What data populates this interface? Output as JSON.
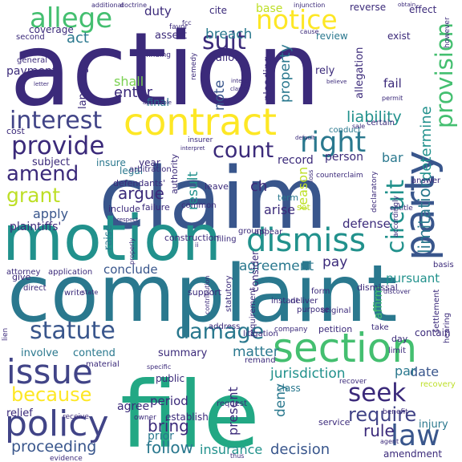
{
  "palette": {
    "dark_purple": "#440154",
    "indigo": "#3b2a7a",
    "blue_purple": "#414487",
    "slate_blue": "#39568c",
    "steel_blue": "#2a788e",
    "teal": "#21918c",
    "green_teal": "#22a884",
    "green": "#44bf70",
    "light_green": "#7ad151",
    "yellow_green": "#bddf26",
    "yellow": "#fde725"
  },
  "words": [
    {
      "text": "action",
      "color": "#3b2a7a"
    },
    {
      "text": "claim",
      "color": "#39568c"
    },
    {
      "text": "complaint",
      "color": "#2a788e"
    },
    {
      "text": "motion",
      "color": "#21918c"
    },
    {
      "text": "file",
      "color": "#22a884"
    },
    {
      "text": "contract",
      "color": "#fde725"
    },
    {
      "text": "party",
      "color": "#39568c"
    },
    {
      "text": "dismiss",
      "color": "#21918c"
    },
    {
      "text": "section",
      "color": "#44bf70"
    },
    {
      "text": "notice",
      "color": "#fde725"
    },
    {
      "text": "allege",
      "color": "#44bf70"
    },
    {
      "text": "issue",
      "color": "#414487"
    },
    {
      "text": "policy",
      "color": "#414487"
    },
    {
      "text": "law",
      "color": "#39568c"
    },
    {
      "text": "right",
      "color": "#2a788e"
    },
    {
      "text": "provide",
      "color": "#3b2a7a"
    },
    {
      "text": "interest",
      "color": "#414487"
    },
    {
      "text": "count",
      "color": "#3b2a7a"
    },
    {
      "text": "amend",
      "color": "#3b2a7a"
    },
    {
      "text": "grant",
      "color": "#bddf26"
    },
    {
      "text": "circuit",
      "color": "#21918c"
    },
    {
      "text": "provision",
      "color": "#44bf70"
    },
    {
      "text": "statute",
      "color": "#39568c"
    },
    {
      "text": "damage",
      "color": "#2a788e"
    },
    {
      "text": "seek",
      "color": "#3b2a7a"
    },
    {
      "text": "require",
      "color": "#414487"
    },
    {
      "text": "because",
      "color": "#fde725"
    },
    {
      "text": "jurisdiction",
      "color": "#21918c"
    },
    {
      "text": "proceeding",
      "color": "#39568c"
    },
    {
      "text": "insurance",
      "color": "#21918c"
    },
    {
      "text": "decision",
      "color": "#39568c"
    },
    {
      "text": "suit",
      "color": "#3b2a7a"
    },
    {
      "text": "argue",
      "color": "#3b2a7a"
    },
    {
      "text": "agreement",
      "color": "#2a788e"
    },
    {
      "text": "bring",
      "color": "#3b2a7a"
    },
    {
      "text": "follow",
      "color": "#2a788e"
    },
    {
      "text": "liability",
      "color": "#21918c"
    },
    {
      "text": "determine",
      "color": "#21918c"
    },
    {
      "text": "limitation",
      "color": "#2a788e"
    },
    {
      "text": "result",
      "color": "#21918c"
    },
    {
      "text": "reason",
      "color": "#bddf26"
    },
    {
      "text": "apply",
      "color": "#39568c"
    },
    {
      "text": "breach",
      "color": "#2a788e"
    },
    {
      "text": "base",
      "color": "#bddf26"
    },
    {
      "text": "duty",
      "color": "#3b2a7a"
    },
    {
      "text": "act",
      "color": "#2a788e"
    },
    {
      "text": "enter",
      "color": "#3b2a7a"
    },
    {
      "text": "shall",
      "color": "#7ad151"
    },
    {
      "text": "note",
      "color": "#39568c"
    },
    {
      "text": "property",
      "color": "#2a788e"
    },
    {
      "text": "pay",
      "color": "#3b2a7a"
    },
    {
      "text": "conclude",
      "color": "#39568c"
    },
    {
      "text": "matter",
      "color": "#2a788e"
    },
    {
      "text": "date",
      "color": "#39568c"
    },
    {
      "text": "rule",
      "color": "#3b2a7a"
    },
    {
      "text": "present",
      "color": "#3b2a7a"
    },
    {
      "text": "deny",
      "color": "#2a788e"
    },
    {
      "text": "par",
      "color": "#2a788e"
    },
    {
      "text": "bar",
      "color": "#2a788e"
    },
    {
      "text": "ch",
      "color": "#3b2a7a"
    },
    {
      "text": "arise",
      "color": "#3b2a7a"
    },
    {
      "text": "record",
      "color": "#3b2a7a"
    },
    {
      "text": "defense",
      "color": "#3b2a7a"
    },
    {
      "text": "person",
      "color": "#3b2a7a"
    },
    {
      "text": "pursuant",
      "color": "#21918c"
    },
    {
      "text": "period",
      "color": "#3b2a7a"
    },
    {
      "text": "affirm",
      "color": "#44bf70"
    },
    {
      "text": "payment",
      "color": "#3b2a7a"
    },
    {
      "text": "subject",
      "color": "#3b2a7a"
    },
    {
      "text": "plaintiffs'",
      "color": "#3b2a7a"
    },
    {
      "text": "raise",
      "color": "#2a788e"
    },
    {
      "text": "involve",
      "color": "#2a788e"
    },
    {
      "text": "contend",
      "color": "#2a788e"
    },
    {
      "text": "summary",
      "color": "#3b2a7a"
    },
    {
      "text": "agree",
      "color": "#3b2a7a"
    },
    {
      "text": "establish",
      "color": "#3b2a7a"
    },
    {
      "text": "prior",
      "color": "#2a788e"
    },
    {
      "text": "relief",
      "color": "#3b2a7a"
    },
    {
      "text": "fail",
      "color": "#3b2a7a"
    },
    {
      "text": "allegation",
      "color": "#3b2a7a"
    },
    {
      "text": "coverage",
      "color": "#3b2a7a"
    },
    {
      "text": "assert",
      "color": "#3b2a7a"
    },
    {
      "text": "allow",
      "color": "#3b2a7a"
    },
    {
      "text": "pleading",
      "color": "#3b2a7a"
    },
    {
      "text": "rely",
      "color": "#3b2a7a"
    },
    {
      "text": "language",
      "color": "#3b2a7a"
    },
    {
      "text": "final",
      "color": "#2a788e"
    },
    {
      "text": "legal",
      "color": "#2a788e"
    },
    {
      "text": "insure",
      "color": "#2a788e"
    },
    {
      "text": "year",
      "color": "#3b2a7a"
    },
    {
      "text": "cost",
      "color": "#3b2a7a"
    },
    {
      "text": "conduct",
      "color": "#2a788e"
    },
    {
      "text": "review",
      "color": "#2a788e"
    },
    {
      "text": "exist",
      "color": "#3b2a7a"
    },
    {
      "text": "cite",
      "color": "#3b2a7a"
    },
    {
      "text": "reverse",
      "color": "#3b2a7a"
    },
    {
      "text": "effect",
      "color": "#3b2a7a"
    },
    {
      "text": "service",
      "color": "#3b2a7a"
    },
    {
      "text": "contain",
      "color": "#3b2a7a"
    },
    {
      "text": "injury",
      "color": "#2a788e"
    },
    {
      "text": "amendment",
      "color": "#3b2a7a"
    },
    {
      "text": "class",
      "color": "#2a788e"
    },
    {
      "text": "request",
      "color": "#3b2a7a"
    },
    {
      "text": "public",
      "color": "#3b2a7a"
    },
    {
      "text": "petition",
      "color": "#3b2a7a"
    },
    {
      "text": "address",
      "color": "#3b2a7a"
    },
    {
      "text": "company",
      "color": "#3b2a7a"
    },
    {
      "text": "construction",
      "color": "#3b2a7a"
    },
    {
      "text": "include",
      "color": "#3b2a7a"
    },
    {
      "text": "failure",
      "color": "#3b2a7a"
    },
    {
      "text": "authority",
      "color": "#3b2a7a"
    },
    {
      "text": "defendants'",
      "color": "#3b2a7a"
    },
    {
      "text": "arbitration",
      "color": "#3b2a7a"
    },
    {
      "text": "consider",
      "color": "#3b2a7a"
    },
    {
      "text": "support",
      "color": "#3b2a7a"
    },
    {
      "text": "give",
      "color": "#3b2a7a"
    },
    {
      "text": "attorney",
      "color": "#3b2a7a"
    },
    {
      "text": "application",
      "color": "#3b2a7a"
    },
    {
      "text": "original",
      "color": "#3b2a7a"
    },
    {
      "text": "purpose",
      "color": "#3b2a7a"
    },
    {
      "text": "statutory",
      "color": "#3b2a7a"
    },
    {
      "text": "remand",
      "color": "#3b2a7a"
    },
    {
      "text": "material",
      "color": "#3b2a7a"
    },
    {
      "text": "limit",
      "color": "#3b2a7a"
    },
    {
      "text": "take",
      "color": "#3b2a7a"
    },
    {
      "text": "day",
      "color": "#3b2a7a"
    },
    {
      "text": "certain",
      "color": "#3b2a7a"
    },
    {
      "text": "term",
      "color": "#2a788e"
    },
    {
      "text": "set",
      "color": "#bddf26"
    },
    {
      "text": "leave",
      "color": "#3b2a7a"
    },
    {
      "text": "common",
      "color": "#3b2a7a"
    },
    {
      "text": "ground",
      "color": "#3b2a7a"
    },
    {
      "text": "filing",
      "color": "#3b2a7a"
    },
    {
      "text": "appear",
      "color": "#3b2a7a"
    },
    {
      "text": "instant",
      "color": "#3b2a7a"
    },
    {
      "text": "deliver",
      "color": "#3b2a7a"
    },
    {
      "text": "litigation",
      "color": "#3b2a7a"
    },
    {
      "text": "requirement",
      "color": "#3b2a7a"
    },
    {
      "text": "form",
      "color": "#3b2a7a"
    },
    {
      "text": "dismissal",
      "color": "#3b2a7a"
    },
    {
      "text": "settlement",
      "color": "#3b2a7a"
    },
    {
      "text": "basis",
      "color": "#3b2a7a"
    },
    {
      "text": "hearing",
      "color": "#3b2a7a"
    },
    {
      "text": "answer",
      "color": "#3b2a7a"
    },
    {
      "text": "recover",
      "color": "#3b2a7a"
    },
    {
      "text": "recovery",
      "color": "#bddf26"
    },
    {
      "text": "benefit",
      "color": "#3b2a7a"
    },
    {
      "text": "agent",
      "color": "#3b2a7a"
    },
    {
      "text": "owner",
      "color": "#3b2a7a"
    },
    {
      "text": "receive",
      "color": "#3b2a7a"
    },
    {
      "text": "specific",
      "color": "#3b2a7a"
    },
    {
      "text": "direct",
      "color": "#3b2a7a"
    },
    {
      "text": "write",
      "color": "#3b2a7a"
    },
    {
      "text": "evidence",
      "color": "#3b2a7a"
    },
    {
      "text": "lien",
      "color": "#3b2a7a"
    },
    {
      "text": "thus",
      "color": "#3b2a7a"
    },
    {
      "text": "general",
      "color": "#3b2a7a"
    },
    {
      "text": "second",
      "color": "#3b2a7a"
    },
    {
      "text": "additional",
      "color": "#3b2a7a"
    },
    {
      "text": "doctrine",
      "color": "#3b2a7a"
    },
    {
      "text": "injunction",
      "color": "#3b2a7a"
    },
    {
      "text": "obtain",
      "color": "#3b2a7a"
    },
    {
      "text": "however",
      "color": "#3b2a7a"
    },
    {
      "text": "favor",
      "color": "#3b2a7a"
    },
    {
      "text": "finding",
      "color": "#3b2a7a"
    },
    {
      "text": "remedy",
      "color": "#3b2a7a"
    },
    {
      "text": "intend",
      "color": "#3b2a7a"
    },
    {
      "text": "clause",
      "color": "#3b2a7a"
    },
    {
      "text": "believe",
      "color": "#3b2a7a"
    },
    {
      "text": "permit",
      "color": "#3b2a7a"
    },
    {
      "text": "sale",
      "color": "#3b2a7a"
    },
    {
      "text": "letter",
      "color": "#3b2a7a"
    },
    {
      "text": "counterclaim",
      "color": "#3b2a7a"
    },
    {
      "text": "insurer",
      "color": "#3b2a7a"
    },
    {
      "text": "entitle",
      "color": "#3b2a7a"
    },
    {
      "text": "declaratory",
      "color": "#3b2a7a"
    },
    {
      "text": "accordingly",
      "color": "#3b2a7a"
    },
    {
      "text": "respect",
      "color": "#3b2a7a"
    },
    {
      "text": "cause",
      "color": "#3b2a7a"
    },
    {
      "text": "fcc",
      "color": "#3b2a7a"
    },
    {
      "text": "default",
      "color": "#3b2a7a"
    },
    {
      "text": "loss",
      "color": "#3b2a7a"
    },
    {
      "text": "ii",
      "color": "#3b2a7a"
    },
    {
      "text": "discover",
      "color": "#3b2a7a"
    },
    {
      "text": "contribution",
      "color": "#3b2a7a"
    },
    {
      "text": "properly",
      "color": "#3b2a7a"
    },
    {
      "text": "state",
      "color": "#3b2a7a"
    },
    {
      "text": "applicable",
      "color": "#3b2a7a"
    },
    {
      "text": "interpret",
      "color": "#3b2a7a"
    }
  ]
}
